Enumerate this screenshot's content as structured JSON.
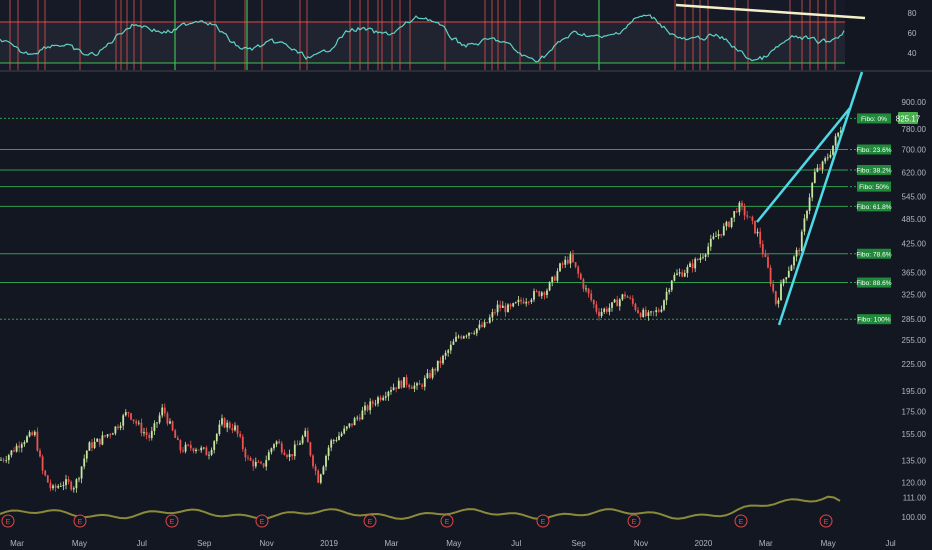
{
  "chart_data": {
    "type": "candlestick",
    "symbol_last_price": "825.17",
    "price_axis": {
      "scale": "log",
      "ticks": [
        "900.00",
        "780.00",
        "700.00",
        "620.00",
        "545.00",
        "485.00",
        "425.00",
        "365.00",
        "325.00",
        "285.00",
        "255.00",
        "225.00",
        "195.00",
        "175.00",
        "155.00",
        "135.00",
        "120.00",
        "111.00",
        "100.00"
      ],
      "ylim": [
        95,
        960
      ]
    },
    "time_axis": {
      "ticks": [
        "Mar",
        "May",
        "Jul",
        "Sep",
        "Nov",
        "2019",
        "Mar",
        "May",
        "Jul",
        "Sep",
        "Nov",
        "2020",
        "Mar",
        "May",
        "Jul"
      ]
    },
    "oscillator": {
      "ticks": [
        "80",
        "60",
        "40"
      ],
      "overbought": 70,
      "oversold": 30,
      "series_color": "#5fd3c5"
    },
    "fibonacci": [
      {
        "label": "Fibo:   0%",
        "price": 825
      },
      {
        "label": "Fibo: 23.6%",
        "price": 700
      },
      {
        "label": "Fibo: 38.2%",
        "price": 628
      },
      {
        "label": "Fibo:   50%",
        "price": 575
      },
      {
        "label": "Fibo: 61.8%",
        "price": 518
      },
      {
        "label": "Fibo: 78.6%",
        "price": 403
      },
      {
        "label": "Fibo: 88.6%",
        "price": 346
      },
      {
        "label": "Fibo: 100%",
        "price": 285
      }
    ],
    "price_path": [
      {
        "x": 0,
        "p": 135
      },
      {
        "x": 10,
        "p": 140
      },
      {
        "x": 22,
        "p": 150
      },
      {
        "x": 35,
        "p": 155
      },
      {
        "x": 42,
        "p": 128
      },
      {
        "x": 52,
        "p": 115
      },
      {
        "x": 62,
        "p": 120
      },
      {
        "x": 75,
        "p": 118
      },
      {
        "x": 88,
        "p": 145
      },
      {
        "x": 100,
        "p": 150
      },
      {
        "x": 115,
        "p": 160
      },
      {
        "x": 128,
        "p": 175
      },
      {
        "x": 140,
        "p": 160
      },
      {
        "x": 150,
        "p": 152
      },
      {
        "x": 163,
        "p": 178
      },
      {
        "x": 170,
        "p": 162
      },
      {
        "x": 180,
        "p": 143
      },
      {
        "x": 195,
        "p": 145
      },
      {
        "x": 208,
        "p": 140
      },
      {
        "x": 222,
        "p": 165
      },
      {
        "x": 235,
        "p": 160
      },
      {
        "x": 248,
        "p": 135
      },
      {
        "x": 262,
        "p": 130
      },
      {
        "x": 275,
        "p": 150
      },
      {
        "x": 290,
        "p": 138
      },
      {
        "x": 305,
        "p": 155
      },
      {
        "x": 318,
        "p": 122
      },
      {
        "x": 330,
        "p": 148
      },
      {
        "x": 345,
        "p": 158
      },
      {
        "x": 360,
        "p": 172
      },
      {
        "x": 375,
        "p": 185
      },
      {
        "x": 390,
        "p": 198
      },
      {
        "x": 405,
        "p": 205
      },
      {
        "x": 418,
        "p": 198
      },
      {
        "x": 432,
        "p": 215
      },
      {
        "x": 445,
        "p": 235
      },
      {
        "x": 458,
        "p": 260
      },
      {
        "x": 470,
        "p": 268
      },
      {
        "x": 485,
        "p": 275
      },
      {
        "x": 498,
        "p": 305
      },
      {
        "x": 510,
        "p": 300
      },
      {
        "x": 522,
        "p": 315
      },
      {
        "x": 535,
        "p": 325
      },
      {
        "x": 548,
        "p": 335
      },
      {
        "x": 560,
        "p": 375
      },
      {
        "x": 570,
        "p": 395
      },
      {
        "x": 585,
        "p": 335
      },
      {
        "x": 598,
        "p": 295
      },
      {
        "x": 612,
        "p": 305
      },
      {
        "x": 625,
        "p": 325
      },
      {
        "x": 638,
        "p": 298
      },
      {
        "x": 648,
        "p": 288
      },
      {
        "x": 660,
        "p": 300
      },
      {
        "x": 672,
        "p": 355
      },
      {
        "x": 688,
        "p": 372
      },
      {
        "x": 700,
        "p": 395
      },
      {
        "x": 715,
        "p": 440
      },
      {
        "x": 728,
        "p": 470
      },
      {
        "x": 738,
        "p": 520
      },
      {
        "x": 748,
        "p": 490
      },
      {
        "x": 758,
        "p": 445
      },
      {
        "x": 768,
        "p": 370
      },
      {
        "x": 776,
        "p": 310
      },
      {
        "x": 784,
        "p": 355
      },
      {
        "x": 792,
        "p": 385
      },
      {
        "x": 800,
        "p": 420
      },
      {
        "x": 808,
        "p": 530
      },
      {
        "x": 815,
        "p": 620
      },
      {
        "x": 822,
        "p": 640
      },
      {
        "x": 830,
        "p": 690
      },
      {
        "x": 838,
        "p": 760
      },
      {
        "x": 845,
        "p": 825
      }
    ],
    "volume_line_color": "#8a8a3a",
    "earnings_marker_label": "E",
    "earnings_markers": [
      8,
      80,
      172,
      262,
      370,
      447,
      543,
      634,
      741,
      826
    ],
    "colors": {
      "up": "#c8e6a0",
      "down": "#ef5350",
      "grid_fib": "#2e9e4f",
      "fib_label_bg": "#1f8b3a",
      "trend": "#4dd9e6",
      "divergence": "#f5f0c8",
      "last_price_bg": "#4caf50"
    }
  }
}
